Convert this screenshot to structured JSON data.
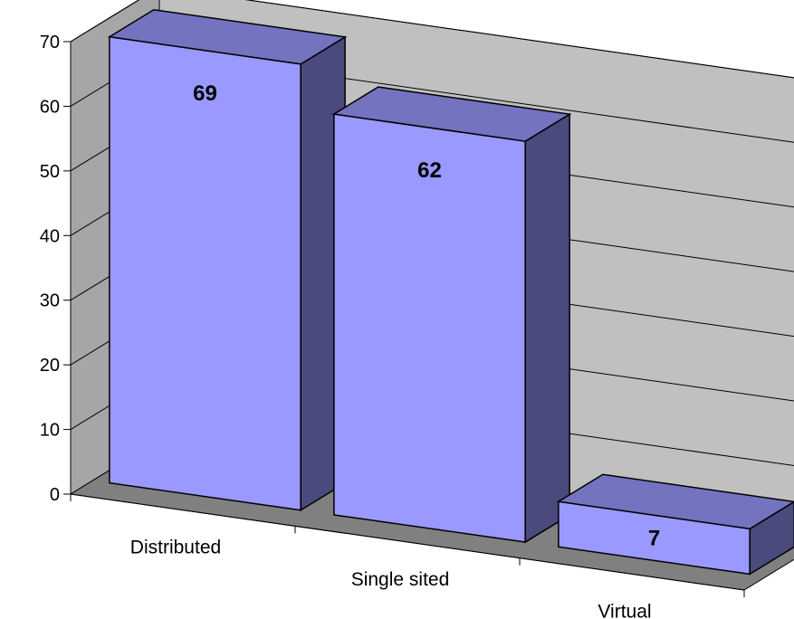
{
  "chart_data": {
    "type": "bar",
    "style": "3d-column",
    "categories": [
      "Distributed",
      "Single sited",
      "Virtual"
    ],
    "values": [
      69,
      62,
      7
    ],
    "data_labels": [
      "69",
      "62",
      "7"
    ],
    "title": "",
    "xlabel": "",
    "ylabel": "",
    "ylim": [
      0,
      70
    ],
    "yticks": [
      "0",
      "10",
      "20",
      "30",
      "40",
      "50",
      "60",
      "70"
    ],
    "grid": true,
    "legend": "none",
    "colors": {
      "bar_front": "#9999ff",
      "bar_side": "#4a4a7c",
      "bar_top": "#7373bf",
      "back_wall": "#c0c0c0",
      "side_wall": "#a6a6a6",
      "floor": "#808080"
    }
  }
}
